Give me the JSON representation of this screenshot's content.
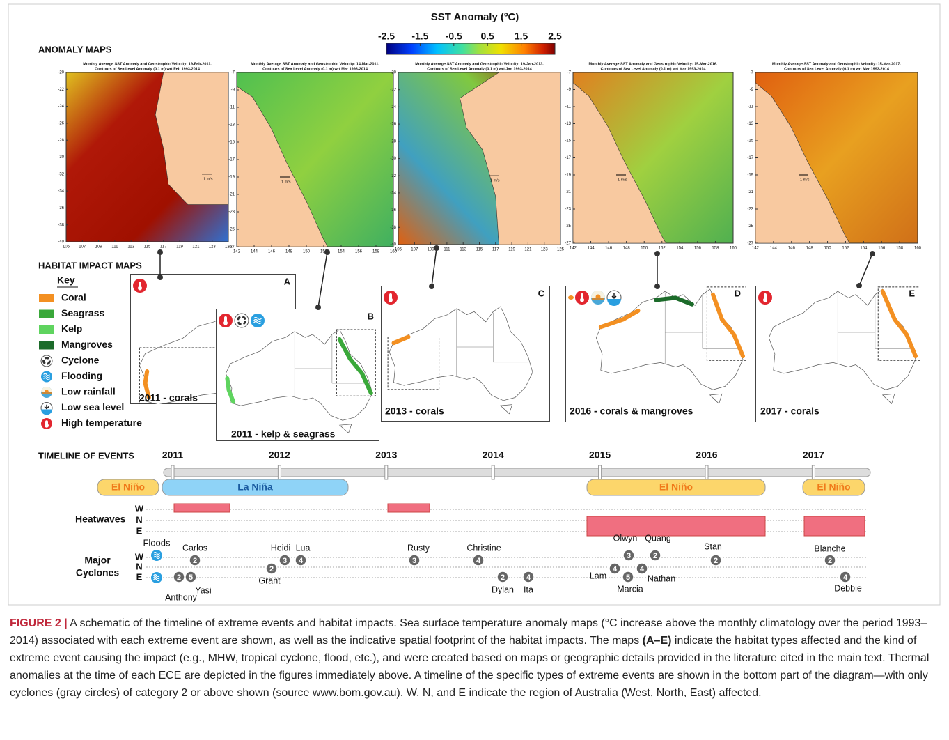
{
  "colorbar": {
    "title": "SST Anomaly (ºC)",
    "ticks": [
      -2.5,
      -1.5,
      -0.5,
      0.5,
      1.5,
      2.5
    ]
  },
  "sections": {
    "anomaly_maps": "ANOMALY MAPS",
    "habitat_impact_maps": "HABITAT IMPACT MAPS",
    "timeline": "TIMELINE OF EVENTS"
  },
  "maps": [
    {
      "title": "Monthly Average SST Anomaly  and Geostrophic Velocity: 19-Feb-2011.",
      "subtitle": "Contours of Sea Level Anomaly (0.1 m) wrt Feb 1993-2014",
      "yticks": [
        -20,
        -22,
        -24,
        -26,
        -28,
        -30,
        -32,
        -34,
        -36,
        -38,
        -40
      ],
      "xticks": [
        105,
        107,
        109,
        111,
        113,
        115,
        117,
        119,
        121,
        123,
        125
      ]
    },
    {
      "title": "Monthly Average SST Anomaly  and Geostrophic Velocity: 14-Mar-2011.",
      "subtitle": "Contours of Sea Level Anomaly (0.1 m) wrt Mar 1993-2014",
      "yticks": [
        -7,
        -9,
        -11,
        -13,
        -15,
        -17,
        -19,
        -21,
        -23,
        -25,
        -27
      ],
      "xticks": [
        142,
        144,
        146,
        148,
        150,
        152,
        154,
        156,
        158,
        160
      ]
    },
    {
      "title": "Monthly Average SST Anomaly  and Geostrophic Velocity: 19-Jan-2013.",
      "subtitle": "Contours of Sea Level Anomaly (0.1 m) wrt Jan 1993-2014",
      "yticks": [
        -20,
        -22,
        -24,
        -26,
        -28,
        -30,
        -32,
        -34,
        -36,
        -38,
        -40
      ],
      "xticks": [
        105,
        107,
        109,
        111,
        113,
        115,
        117,
        119,
        121,
        123,
        125
      ]
    },
    {
      "title": "Monthly Average SST Anomaly  and Geostrophic Velocity: 15-Mar-2016.",
      "subtitle": "Contours of Sea Level Anomaly (0.1 m) wrt Mar 1993-2014",
      "yticks": [
        -7,
        -9,
        -11,
        -13,
        -15,
        -17,
        -19,
        -21,
        -23,
        -25,
        -27
      ],
      "xticks": [
        142,
        144,
        146,
        148,
        150,
        152,
        154,
        156,
        158,
        160
      ]
    },
    {
      "title": "Monthly Average SST Anomaly  and Geostrophic Velocity: 15-Mar-2017.",
      "subtitle": "Contours of Sea Level Anomaly (0.1 m) wrt Mar 1993-2014",
      "yticks": [
        -7,
        -9,
        -11,
        -13,
        -15,
        -17,
        -19,
        -21,
        -23,
        -25,
        -27
      ],
      "xticks": [
        142,
        144,
        146,
        148,
        150,
        152,
        154,
        156,
        158,
        160
      ]
    }
  ],
  "velocity_scale": "1 m/s",
  "key": {
    "title": "Key",
    "items": [
      "Coral",
      "Seagrass",
      "Kelp",
      "Mangroves",
      "Cyclone",
      "Flooding",
      "Low rainfall",
      "Low sea level",
      "High temperature"
    ]
  },
  "panels": [
    {
      "letter": "A",
      "caption": "2011 - corals"
    },
    {
      "letter": "B",
      "caption": "2011 - kelp & seagrass"
    },
    {
      "letter": "C",
      "caption": "2013 - corals"
    },
    {
      "letter": "D",
      "caption": "2016 - corals & mangroves"
    },
    {
      "letter": "E",
      "caption": "2017 - corals"
    }
  ],
  "timeline": {
    "years": [
      2011,
      2012,
      2013,
      2014,
      2015,
      2016,
      2017
    ],
    "enso": [
      "El Niño",
      "La Niña",
      "El Niño",
      "El Niño"
    ],
    "heatwaves_label": "Heatwaves",
    "regions": [
      "W",
      "N",
      "E"
    ],
    "cyclones_label": [
      "Major",
      "Cyclones"
    ],
    "floods": "Floods",
    "cyclones": [
      {
        "name": "Carlos",
        "category": 2,
        "region": "W"
      },
      {
        "name": "Anthony",
        "category": 2,
        "region": "E"
      },
      {
        "name": "Yasi",
        "category": 5,
        "region": "E"
      },
      {
        "name": "Grant",
        "category": 2,
        "region": "N"
      },
      {
        "name": "Heidi",
        "category": 3,
        "region": "W"
      },
      {
        "name": "Lua",
        "category": 4,
        "region": "W"
      },
      {
        "name": "Rusty",
        "category": 3,
        "region": "W"
      },
      {
        "name": "Christine",
        "category": 4,
        "region": "W"
      },
      {
        "name": "Dylan",
        "category": 2,
        "region": "E"
      },
      {
        "name": "Ita",
        "category": 4,
        "region": "E"
      },
      {
        "name": "Olwyn",
        "category": 3,
        "region": "W"
      },
      {
        "name": "Quang",
        "category": 2,
        "region": "W"
      },
      {
        "name": "Lam",
        "category": 4,
        "region": "N"
      },
      {
        "name": "Marcia",
        "category": 5,
        "region": "E"
      },
      {
        "name": "Nathan",
        "category": 4,
        "region": "N"
      },
      {
        "name": "Stan",
        "category": 2,
        "region": "W"
      },
      {
        "name": "Blanche",
        "category": 2,
        "region": "W"
      },
      {
        "name": "Debbie",
        "category": 4,
        "region": "E"
      }
    ]
  },
  "caption": {
    "figure": "FIGURE 2 |",
    "text1": "A schematic of the timeline of extreme events and habitat impacts. Sea surface temperature anomaly maps (°C increase above the monthly climatology over the period 1993–2014) associated with each extreme event are shown, as well as the indicative spatial footprint of the habitat impacts. The maps",
    "bold": "(A–E)",
    "text2": "indicate the habitat types affected and the kind of extreme event causing the impact (e.g., MHW, tropical cyclone, flood, etc.), and were created based on maps or geographic details provided in the literature cited in the main text. Thermal anomalies at the time of each ECE are depicted in the figures immediately above. A timeline of the specific types of extreme events are shown in the bottom part of the diagram—with only cyclones (gray circles) of category 2 or above shown (source www.bom.gov.au). W, N, and E indicate the region of Australia (West, North, East) affected."
  }
}
